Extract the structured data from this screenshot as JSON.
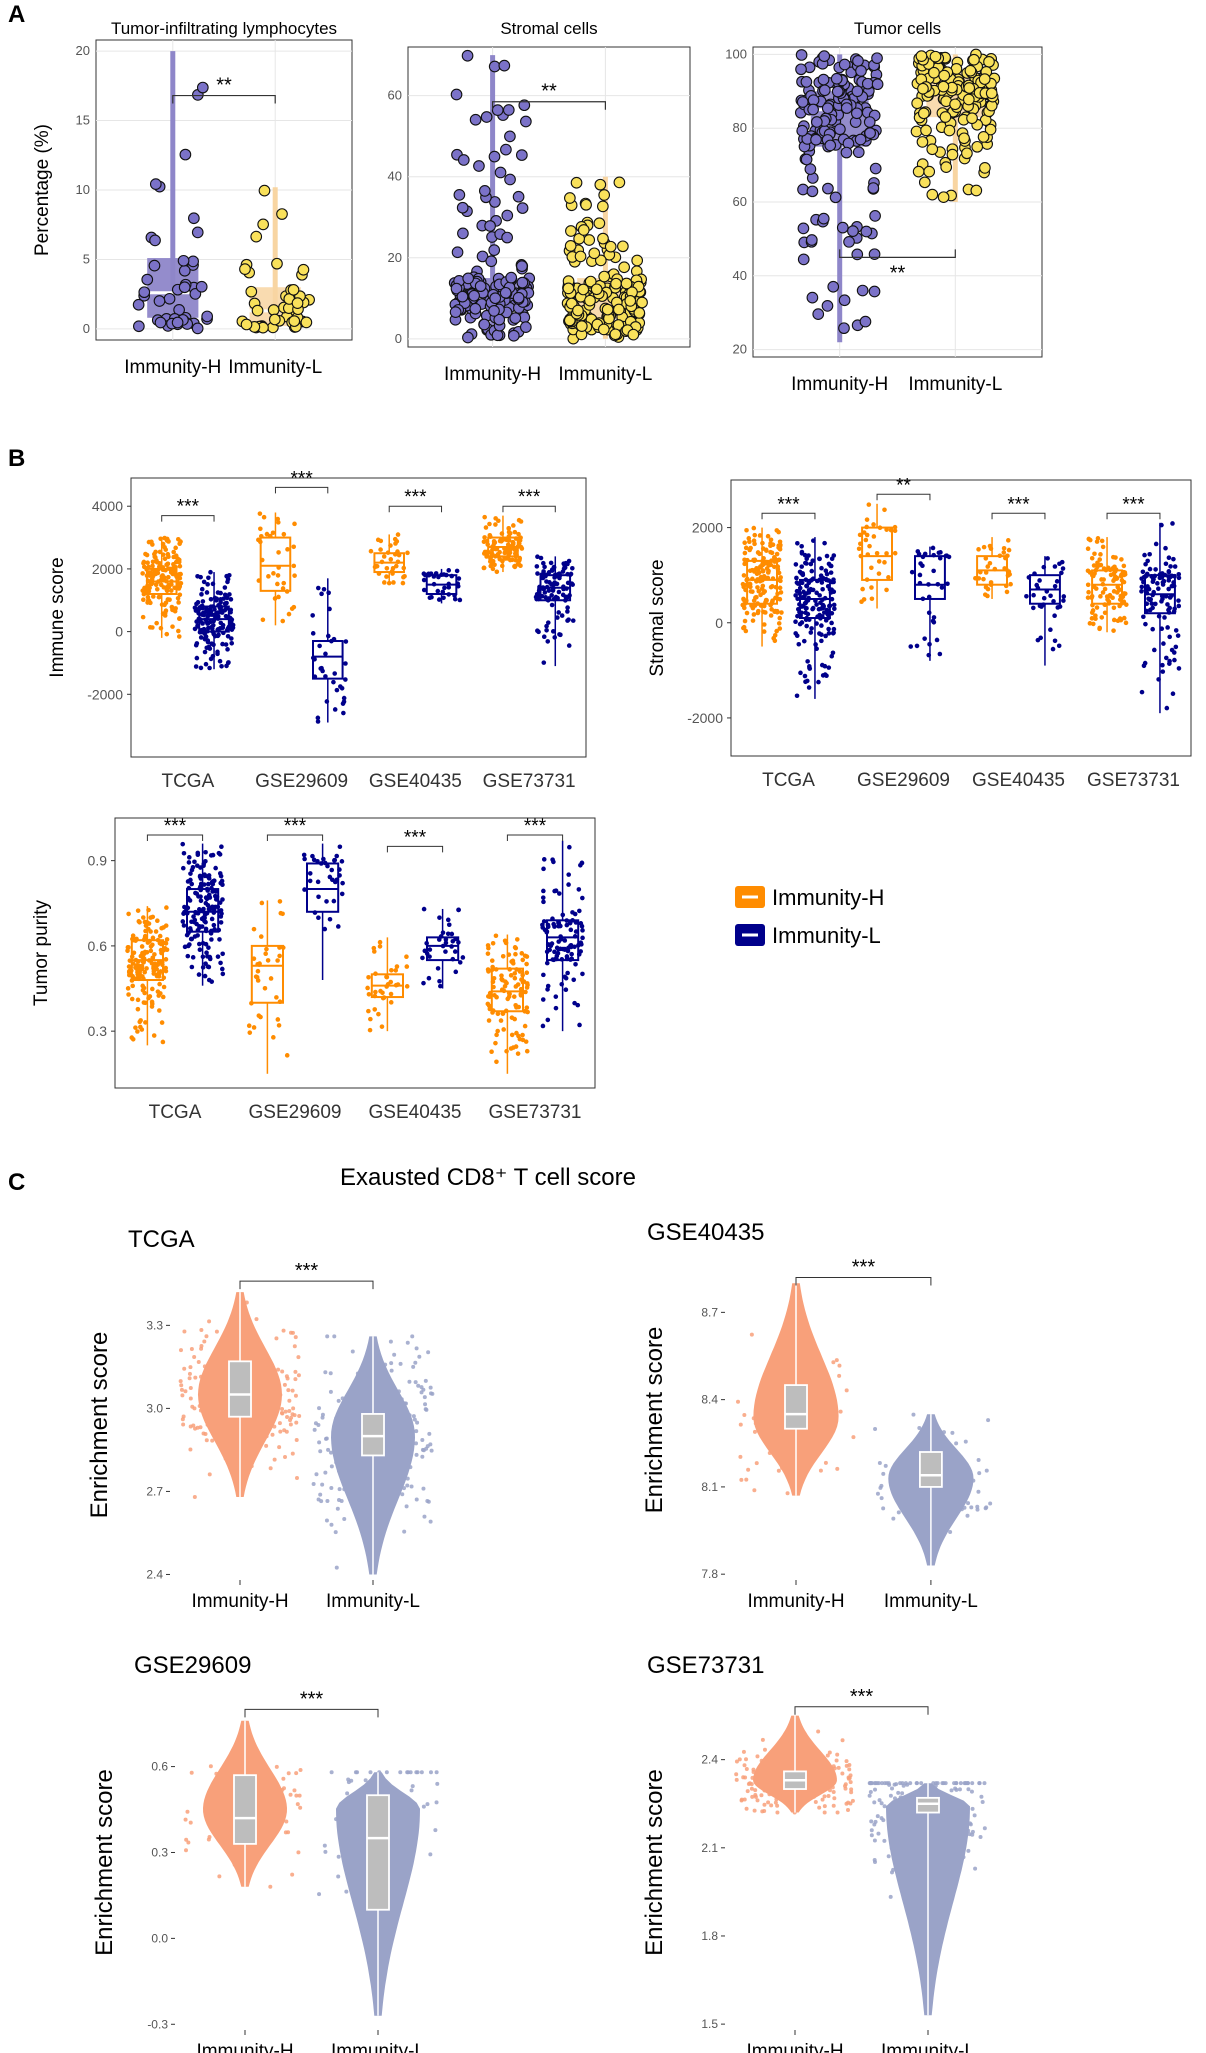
{
  "colors": {
    "a_high": "#7B72C8",
    "a_low": "#F9E15B",
    "a_high_box": "#8E86C9",
    "a_low_box": "#F8D5A2",
    "b_high": "#FF8C00",
    "b_low": "#00008B",
    "c_high": "#F8A07A",
    "c_low": "#9AA3C8",
    "grid": "#e6e6e6",
    "tick": "#555555"
  },
  "panel_labels": {
    "a": "A",
    "b": "B",
    "c": "C"
  },
  "legend": {
    "high": "Immunity-H",
    "low": "Immunity-L"
  },
  "panel_c_title": "Exausted CD8⁺ T cell score",
  "chart_data": [
    {
      "id": "a1",
      "panel": "A",
      "type": "box+strip",
      "title": "Tumor-infiltrating lymphocytes",
      "ylabel": "Percentage (%)",
      "ylim": [
        -0.8,
        20.8
      ],
      "yticks": [
        0,
        5,
        10,
        15,
        20
      ],
      "categories": [
        "Immunity-H",
        "Immunity-L"
      ],
      "series": [
        {
          "name": "Immunity-H",
          "box": {
            "q1": 0.8,
            "median": 2.6,
            "q3": 5.1,
            "whisker_low": 0,
            "whisker_high": 20
          }
        },
        {
          "name": "Immunity-L",
          "box": {
            "q1": 0.2,
            "median": 1.3,
            "q3": 3,
            "whisker_low": 0,
            "whisker_high": 10.2
          }
        }
      ],
      "significance": {
        "label": "**",
        "y": 16.8
      }
    },
    {
      "id": "a2",
      "panel": "A",
      "type": "box+strip",
      "title": "Stromal cells",
      "ylabel": "",
      "ylim": [
        -2,
        72
      ],
      "yticks": [
        0,
        20,
        40,
        60
      ],
      "categories": [
        "Immunity-H",
        "Immunity-L"
      ],
      "series": [
        {
          "name": "Immunity-H",
          "box": {
            "q1": 8,
            "median": 10,
            "q3": 15,
            "whisker_low": 0,
            "whisker_high": 70
          }
        },
        {
          "name": "Immunity-L",
          "box": {
            "q1": 5,
            "median": 10,
            "q3": 15,
            "whisker_low": 0,
            "whisker_high": 40
          }
        }
      ],
      "significance": {
        "label": "**",
        "y": 58.5
      }
    },
    {
      "id": "a3",
      "panel": "A",
      "type": "box+strip",
      "title": "Tumor cells",
      "ylabel": "",
      "ylim": [
        18,
        102
      ],
      "yticks": [
        20,
        40,
        60,
        80,
        100
      ],
      "categories": [
        "Immunity-H",
        "Immunity-L"
      ],
      "series": [
        {
          "name": "Immunity-H",
          "box": {
            "q1": 75,
            "median": 85,
            "q3": 90,
            "whisker_low": 22,
            "whisker_high": 100
          }
        },
        {
          "name": "Immunity-L",
          "box": {
            "q1": 83,
            "median": 90,
            "q3": 95,
            "whisker_low": 60,
            "whisker_high": 100
          }
        }
      ],
      "significance": {
        "label": "**",
        "y": 45
      }
    },
    {
      "id": "b1",
      "panel": "B",
      "type": "grouped-box",
      "ylabel": "Immune score",
      "ylim": [
        -4000,
        4900
      ],
      "yticks": [
        -2000,
        0,
        2000,
        4000
      ],
      "categories": [
        "TCGA",
        "GSE29609",
        "GSE40435",
        "GSE73731"
      ],
      "significance": [
        "***",
        "***",
        "***",
        "***"
      ],
      "sig_y": [
        3700,
        4600,
        4000,
        4000
      ],
      "series": [
        {
          "name": "Immunity-H",
          "boxes": [
            {
              "q1": 1200,
              "median": 1600,
              "q3": 2000,
              "whisker_low": -200,
              "whisker_high": 3000
            },
            {
              "q1": 1300,
              "median": 2100,
              "q3": 3000,
              "whisker_low": 200,
              "whisker_high": 3800
            },
            {
              "q1": 1900,
              "median": 2200,
              "q3": 2500,
              "whisker_low": 1500,
              "whisker_high": 3100
            },
            {
              "q1": 2400,
              "median": 2700,
              "q3": 3000,
              "whisker_low": 1900,
              "whisker_high": 3700
            }
          ]
        },
        {
          "name": "Immunity-L",
          "boxes": [
            {
              "q1": 0,
              "median": 400,
              "q3": 800,
              "whisker_low": -1200,
              "whisker_high": 1900
            },
            {
              "q1": -1500,
              "median": -800,
              "q3": -300,
              "whisker_low": -2900,
              "whisker_high": 1700
            },
            {
              "q1": 1200,
              "median": 1500,
              "q3": 1800,
              "whisker_low": 900,
              "whisker_high": 2000
            },
            {
              "q1": 1000,
              "median": 1400,
              "q3": 1800,
              "whisker_low": -1100,
              "whisker_high": 2400
            }
          ]
        }
      ]
    },
    {
      "id": "b2",
      "panel": "B",
      "type": "grouped-box",
      "ylabel": "Stromal score",
      "ylim": [
        -2800,
        3000
      ],
      "yticks": [
        -2000,
        0,
        2000
      ],
      "categories": [
        "TCGA",
        "GSE29609",
        "GSE40435",
        "GSE73731"
      ],
      "significance": [
        "***",
        "**",
        "***",
        "***"
      ],
      "sig_y": [
        2300,
        2700,
        2300,
        2300
      ],
      "series": [
        {
          "name": "Immunity-H",
          "boxes": [
            {
              "q1": 400,
              "median": 900,
              "q3": 1300,
              "whisker_low": -500,
              "whisker_high": 2000
            },
            {
              "q1": 900,
              "median": 1400,
              "q3": 2000,
              "whisker_low": 300,
              "whisker_high": 2500
            },
            {
              "q1": 800,
              "median": 1100,
              "q3": 1400,
              "whisker_low": 500,
              "whisker_high": 1800
            },
            {
              "q1": 400,
              "median": 800,
              "q3": 1100,
              "whisker_low": -200,
              "whisker_high": 1800
            }
          ]
        },
        {
          "name": "Immunity-L",
          "boxes": [
            {
              "q1": 100,
              "median": 500,
              "q3": 900,
              "whisker_low": -1600,
              "whisker_high": 1800
            },
            {
              "q1": 500,
              "median": 800,
              "q3": 1400,
              "whisker_low": -800,
              "whisker_high": 1600
            },
            {
              "q1": 400,
              "median": 700,
              "q3": 1000,
              "whisker_low": -900,
              "whisker_high": 1400
            },
            {
              "q1": 200,
              "median": 600,
              "q3": 1000,
              "whisker_low": -1900,
              "whisker_high": 2100
            }
          ]
        }
      ]
    },
    {
      "id": "b3",
      "panel": "B",
      "type": "grouped-box",
      "ylabel": "Tumor purity",
      "ylim": [
        0.1,
        1.05
      ],
      "yticks": [
        0.3,
        0.6,
        0.9
      ],
      "categories": [
        "TCGA",
        "GSE29609",
        "GSE40435",
        "GSE73731"
      ],
      "significance": [
        "***",
        "***",
        "***",
        "***"
      ],
      "sig_y": [
        0.99,
        0.99,
        0.95,
        0.99
      ],
      "series": [
        {
          "name": "Immunity-H",
          "boxes": [
            {
              "q1": 0.48,
              "median": 0.55,
              "q3": 0.62,
              "whisker_low": 0.25,
              "whisker_high": 0.74
            },
            {
              "q1": 0.4,
              "median": 0.53,
              "q3": 0.6,
              "whisker_low": 0.15,
              "whisker_high": 0.76
            },
            {
              "q1": 0.42,
              "median": 0.46,
              "q3": 0.5,
              "whisker_low": 0.3,
              "whisker_high": 0.63
            },
            {
              "q1": 0.37,
              "median": 0.44,
              "q3": 0.52,
              "whisker_low": 0.15,
              "whisker_high": 0.64
            }
          ]
        },
        {
          "name": "Immunity-L",
          "boxes": [
            {
              "q1": 0.65,
              "median": 0.72,
              "q3": 0.8,
              "whisker_low": 0.46,
              "whisker_high": 0.96
            },
            {
              "q1": 0.72,
              "median": 0.8,
              "q3": 0.89,
              "whisker_low": 0.48,
              "whisker_high": 0.96
            },
            {
              "q1": 0.55,
              "median": 0.6,
              "q3": 0.63,
              "whisker_low": 0.45,
              "whisker_high": 0.73
            },
            {
              "q1": 0.55,
              "median": 0.63,
              "q3": 0.69,
              "whisker_low": 0.3,
              "whisker_high": 0.97
            }
          ]
        }
      ]
    },
    {
      "id": "c1",
      "panel": "C",
      "type": "violin+box",
      "title": "TCGA",
      "ylabel": "Enrichment score",
      "ylim": [
        2.38,
        3.5
      ],
      "yticks": [
        2.4,
        2.7,
        3.0,
        3.3
      ],
      "categories": [
        "Immunity-H",
        "Immunity-L"
      ],
      "significance": "***",
      "sig_y": 3.46,
      "series": [
        {
          "name": "Immunity-H",
          "range": [
            2.68,
            3.42
          ],
          "mode": 3.05,
          "box": {
            "q1": 2.97,
            "median": 3.05,
            "q3": 3.17
          }
        },
        {
          "name": "Immunity-L",
          "range": [
            2.4,
            3.26
          ],
          "mode": 2.9,
          "box": {
            "q1": 2.83,
            "median": 2.9,
            "q3": 2.98
          }
        }
      ]
    },
    {
      "id": "c2",
      "panel": "C",
      "type": "violin+box",
      "title": "GSE40435",
      "ylabel": "Enrichment score",
      "ylim": [
        7.78,
        8.88
      ],
      "yticks": [
        7.8,
        8.1,
        8.4,
        8.7
      ],
      "categories": [
        "Immunity-H",
        "Immunity-L"
      ],
      "significance": "***",
      "sig_y": 8.82,
      "series": [
        {
          "name": "Immunity-H",
          "range": [
            8.07,
            8.8
          ],
          "mode": 8.34,
          "box": {
            "q1": 8.3,
            "median": 8.35,
            "q3": 8.45
          }
        },
        {
          "name": "Immunity-L",
          "range": [
            7.83,
            8.35
          ],
          "mode": 8.13,
          "box": {
            "q1": 8.1,
            "median": 8.14,
            "q3": 8.22
          }
        }
      ]
    },
    {
      "id": "c3",
      "panel": "C",
      "type": "violin+box",
      "title": "GSE29609",
      "ylabel": "Enrichment score",
      "ylim": [
        -0.32,
        0.85
      ],
      "yticks": [
        -0.3,
        0.0,
        0.3,
        0.6
      ],
      "categories": [
        "Immunity-H",
        "Immunity-L"
      ],
      "significance": "***",
      "sig_y": 0.8,
      "series": [
        {
          "name": "Immunity-H",
          "range": [
            0.18,
            0.76
          ],
          "mode": 0.45,
          "box": {
            "q1": 0.33,
            "median": 0.42,
            "q3": 0.57
          }
        },
        {
          "name": "Immunity-L",
          "range": [
            -0.27,
            0.58
          ],
          "mode": 0.45,
          "box": {
            "q1": 0.1,
            "median": 0.35,
            "q3": 0.5
          }
        }
      ]
    },
    {
      "id": "c4",
      "panel": "C",
      "type": "violin+box",
      "title": "GSE73731",
      "ylabel": "Enrichment score",
      "ylim": [
        1.48,
        2.62
      ],
      "yticks": [
        1.5,
        1.8,
        2.1,
        2.4
      ],
      "categories": [
        "Immunity-H",
        "Immunity-L"
      ],
      "significance": "***",
      "sig_y": 2.58,
      "series": [
        {
          "name": "Immunity-H",
          "range": [
            2.22,
            2.55
          ],
          "mode": 2.33,
          "box": {
            "q1": 2.3,
            "median": 2.33,
            "q3": 2.36
          }
        },
        {
          "name": "Immunity-L",
          "range": [
            1.53,
            2.32
          ],
          "mode": 2.24,
          "box": {
            "q1": 2.22,
            "median": 2.25,
            "q3": 2.27
          }
        }
      ]
    }
  ]
}
